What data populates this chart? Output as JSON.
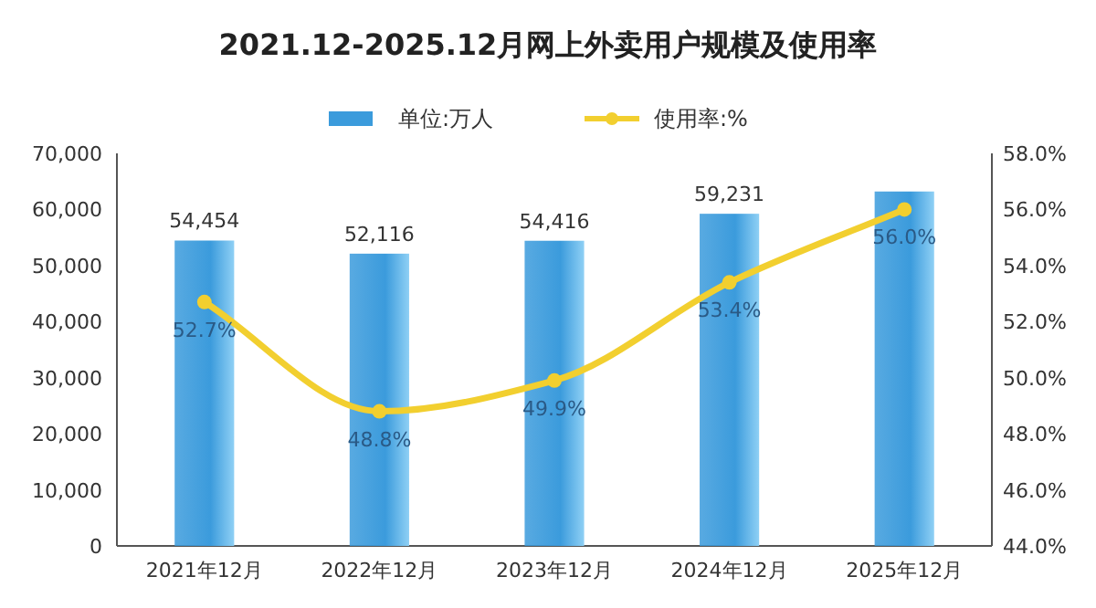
{
  "chart_data": {
    "type": "bar",
    "title": "2021.12-2025.12月网上外卖用户规模及使用率",
    "categories": [
      "2021年12月",
      "2022年12月",
      "2023年12月",
      "2024年12月",
      "2025年12月"
    ],
    "series": [
      {
        "name": "单位:万人",
        "color": "#3b9bdc",
        "values": [
          54454,
          52116,
          54416,
          59231,
          63200
        ],
        "value_labels": [
          "54,454",
          "52,116",
          "54,416",
          "59,231",
          null
        ]
      },
      {
        "name": "使用率:%",
        "type": "line",
        "axis": "y2",
        "color": "#f2cf2f",
        "marker": "circle",
        "values": [
          52.7,
          48.8,
          49.9,
          53.4,
          56.0
        ],
        "value_labels": [
          "52.7%",
          "48.8%",
          "49.9%",
          "53.4%",
          "56.0%"
        ]
      }
    ],
    "ylim": [
      0,
      70000
    ],
    "yticks": [
      0,
      {
        "value": 10000,
        "label": "10,000"
      },
      {
        "value": 20000,
        "label": "20,000"
      },
      {
        "value": 30000,
        "label": "30,000"
      },
      {
        "value": 40000,
        "label": "40,000"
      },
      {
        "value": 50000,
        "label": "50,000"
      },
      {
        "value": 60000,
        "label": "60,000"
      },
      {
        "value": 70000,
        "label": "70,000"
      }
    ],
    "y2lim": [
      44,
      58
    ],
    "y2ticks": [
      {
        "value": 44,
        "label": "44.0%"
      },
      {
        "value": 46,
        "label": "46.0%"
      },
      {
        "value": 48,
        "label": "48.0%"
      },
      {
        "value": 50,
        "label": "50.0%"
      },
      {
        "value": 52,
        "label": "52.0%"
      },
      {
        "value": 54,
        "label": "54.0%"
      },
      {
        "value": 56,
        "label": "56.0%"
      },
      {
        "value": 58,
        "label": "58.0%"
      }
    ],
    "legend": "top",
    "grid": false
  }
}
